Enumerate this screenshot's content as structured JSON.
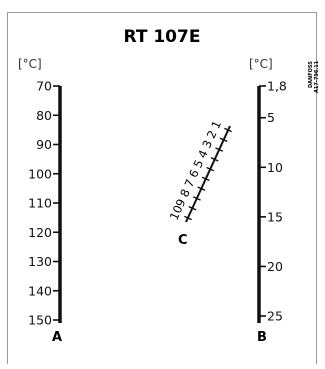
{
  "title": "RT 107E",
  "scale_a": {
    "unit": "[°C]",
    "letter": "A",
    "ticks": [
      "70",
      "80",
      "90",
      "100",
      "110",
      "120",
      "130",
      "140",
      "150"
    ]
  },
  "scale_b": {
    "unit": "[°C]",
    "letter": "B",
    "ticks": [
      "1,8",
      "5",
      "10",
      "15",
      "20",
      "25"
    ],
    "values": [
      1.8,
      5,
      10,
      15,
      20,
      25
    ]
  },
  "scale_c": {
    "letter": "C",
    "ticks": [
      "1",
      "2",
      "3",
      "4",
      "5",
      "6",
      "7",
      "8",
      "9",
      "10"
    ]
  },
  "stamp": {
    "brand": "DANFOSS",
    "code": "A17-796.11"
  }
}
